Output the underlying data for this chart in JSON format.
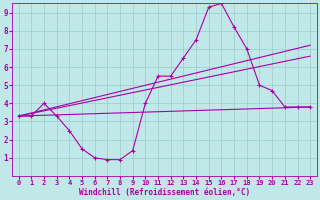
{
  "xlabel": "Windchill (Refroidissement éolien,°C)",
  "xlim": [
    -0.5,
    23.5
  ],
  "ylim": [
    0,
    9.5
  ],
  "xticks": [
    0,
    1,
    2,
    3,
    4,
    5,
    6,
    7,
    8,
    9,
    10,
    11,
    12,
    13,
    14,
    15,
    16,
    17,
    18,
    19,
    20,
    21,
    22,
    23
  ],
  "yticks": [
    1,
    2,
    3,
    4,
    5,
    6,
    7,
    8,
    9
  ],
  "bg_color": "#c0e8e8",
  "line_color": "#aa00aa",
  "grid_color": "#99cccc",
  "line1_x": [
    0,
    1,
    2,
    3,
    4,
    5,
    6,
    7,
    8,
    9,
    10,
    11,
    12,
    13,
    14,
    15,
    16,
    17,
    18,
    19,
    20,
    21,
    22,
    23
  ],
  "line1_y": [
    3.3,
    3.3,
    4.0,
    3.3,
    2.5,
    1.5,
    1.0,
    0.9,
    0.9,
    1.4,
    4.0,
    5.5,
    5.5,
    6.5,
    7.5,
    9.3,
    9.5,
    8.2,
    7.0,
    5.0,
    4.7,
    3.8,
    3.8,
    3.8
  ],
  "line2_x": [
    0,
    23
  ],
  "line2_y": [
    3.3,
    7.2
  ],
  "line3_x": [
    0,
    23
  ],
  "line3_y": [
    3.3,
    6.6
  ],
  "line4_x": [
    0,
    23
  ],
  "line4_y": [
    3.3,
    3.8
  ]
}
